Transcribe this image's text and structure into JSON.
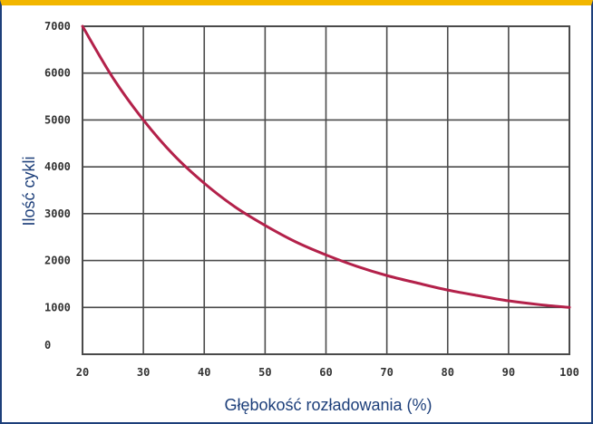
{
  "chart_data": {
    "type": "line",
    "title": "",
    "xlabel": "Głębokość rozładowania (%)",
    "ylabel": "Ilość cykli",
    "xlim": [
      20,
      100
    ],
    "ylim": [
      0,
      7000
    ],
    "x_ticks": [
      "20",
      "30",
      "40",
      "50",
      "60",
      "70",
      "80",
      "90",
      "100"
    ],
    "y_ticks": [
      "0",
      "1000",
      "2000",
      "3000",
      "4000",
      "5000",
      "6000",
      "7000"
    ],
    "grid": true,
    "series": [
      {
        "color": "#b3214a",
        "x": [
          20,
          25,
          30,
          35,
          40,
          45,
          50,
          55,
          60,
          65,
          70,
          75,
          80,
          85,
          90,
          95,
          100
        ],
        "y": [
          7000,
          5900,
          5000,
          4250,
          3650,
          3150,
          2750,
          2400,
          2120,
          1880,
          1680,
          1520,
          1370,
          1250,
          1140,
          1060,
          1000
        ]
      }
    ]
  }
}
